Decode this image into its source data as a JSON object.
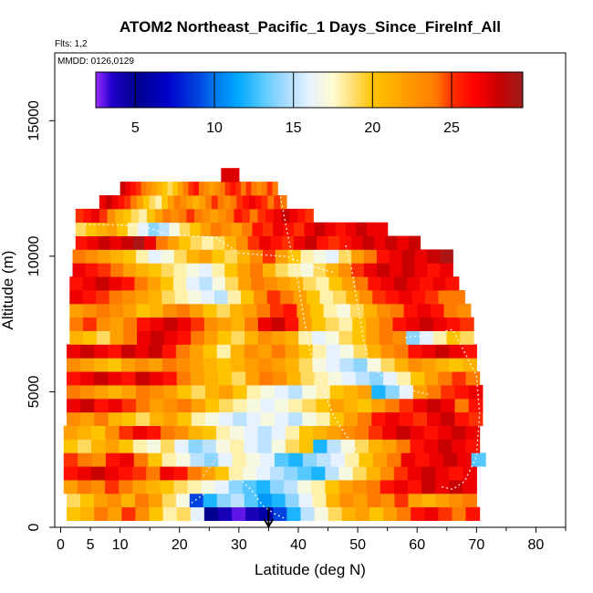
{
  "chart_data": {
    "type": "heatmap",
    "title": "ATOM2 Northeast_Pacific_1 Days_Since_FireInf_All",
    "flights_note": "Flts: 1,2",
    "dates_note": "MMDD: 0126,0129",
    "xlabel": "Latitude (deg N)",
    "ylabel": "Altitude (m)",
    "xlim": [
      -1,
      85
    ],
    "ylim": [
      0,
      17500
    ],
    "x_ticks": [
      0,
      5,
      10,
      20,
      30,
      40,
      50,
      60,
      70,
      80
    ],
    "y_ticks": [
      0,
      5000,
      10000,
      15000
    ],
    "colorbar": {
      "range": [
        2.5,
        29.5
      ],
      "ticks": [
        5,
        10,
        15,
        20,
        25
      ],
      "stops": [
        {
          "v": 2.5,
          "c": "#9a2cff"
        },
        {
          "v": 3.5,
          "c": "#2200cc"
        },
        {
          "v": 5,
          "c": "#00008c"
        },
        {
          "v": 7,
          "c": "#0000c8"
        },
        {
          "v": 9,
          "c": "#0044e0"
        },
        {
          "v": 10,
          "c": "#0077ee"
        },
        {
          "v": 11.5,
          "c": "#00a8ff"
        },
        {
          "v": 13,
          "c": "#55c8ff"
        },
        {
          "v": 14.5,
          "c": "#a6dcff"
        },
        {
          "v": 16,
          "c": "#e6f2ff"
        },
        {
          "v": 17.5,
          "c": "#fffbd0"
        },
        {
          "v": 18.7,
          "c": "#ffe07a"
        },
        {
          "v": 20,
          "c": "#ffc400"
        },
        {
          "v": 22,
          "c": "#ffa000"
        },
        {
          "v": 24,
          "c": "#ff7a00"
        },
        {
          "v": 25,
          "c": "#ff3000"
        },
        {
          "v": 26.5,
          "c": "#ff0000"
        },
        {
          "v": 28,
          "c": "#c80000"
        },
        {
          "v": 29.5,
          "c": "#a01e1e"
        }
      ]
    },
    "arrow_marker_latitude": 35,
    "rows": [
      {
        "alt": 500,
        "lat_min": 1,
        "lat_max": 70.5,
        "seq": [
          20,
          21,
          24,
          22,
          25,
          23,
          20,
          18,
          19,
          16,
          5,
          4,
          3,
          4,
          6,
          9,
          12,
          15,
          17,
          19,
          21,
          22,
          20,
          22,
          24,
          26,
          27,
          25,
          24,
          26
        ]
      },
      {
        "alt": 1000,
        "lat_min": 1,
        "lat_max": 70,
        "seq": [
          19,
          20,
          22,
          23,
          21,
          24,
          22,
          19,
          17,
          9,
          12,
          14,
          15,
          13,
          11,
          12,
          14,
          16,
          18,
          21,
          23,
          22,
          24,
          23,
          25,
          22,
          21,
          22,
          23,
          24
        ]
      },
      {
        "alt": 1500,
        "lat_min": 0.5,
        "lat_max": 70,
        "seq": [
          22,
          24,
          23,
          25,
          24,
          22,
          21,
          20,
          19,
          18,
          17,
          16,
          14,
          13,
          12,
          14,
          15,
          17,
          18,
          20,
          22,
          23,
          24,
          26,
          27,
          26,
          28,
          27,
          28,
          27
        ]
      },
      {
        "alt": 2000,
        "lat_min": 0.5,
        "lat_max": 70,
        "seq": [
          26,
          27,
          28,
          27,
          26,
          25,
          24,
          27,
          26,
          24,
          22,
          20,
          18,
          17,
          16,
          15,
          14,
          13,
          12,
          15,
          17,
          19,
          21,
          23,
          25,
          27,
          28,
          27,
          26,
          27
        ]
      },
      {
        "alt": 2500,
        "lat_min": 0.5,
        "lat_max": 71.5,
        "seq": [
          25,
          24,
          23,
          26,
          27,
          24,
          20,
          18,
          17,
          15,
          14,
          16,
          18,
          17,
          16,
          13,
          12,
          14,
          15,
          16,
          18,
          20,
          22,
          24,
          27,
          26,
          27,
          28,
          27,
          13
        ]
      },
      {
        "alt": 3000,
        "lat_min": 0.5,
        "lat_max": 70.5,
        "seq": [
          20,
          19,
          21,
          22,
          20,
          18,
          17,
          19,
          16,
          14,
          15,
          17,
          18,
          16,
          15,
          17,
          19,
          20,
          12,
          15,
          17,
          19,
          21,
          22,
          24,
          26,
          27,
          28,
          27,
          26
        ]
      },
      {
        "alt": 3500,
        "lat_min": 0.5,
        "lat_max": 70.5,
        "seq": [
          22,
          21,
          20,
          23,
          25,
          27,
          26,
          24,
          23,
          21,
          20,
          18,
          17,
          16,
          15,
          16,
          18,
          20,
          21,
          22,
          23,
          24,
          25,
          27,
          28,
          27,
          26,
          27,
          28,
          27
        ]
      },
      {
        "alt": 4000,
        "lat_min": 1,
        "lat_max": 71,
        "seq": [
          23,
          22,
          24,
          21,
          20,
          19,
          21,
          22,
          20,
          18,
          17,
          16,
          15,
          16,
          17,
          16,
          15,
          17,
          18,
          20,
          22,
          24,
          26,
          27,
          26,
          25,
          27,
          28,
          26,
          25
        ]
      },
      {
        "alt": 4500,
        "lat_min": 1,
        "lat_max": 71,
        "seq": [
          27,
          28,
          26,
          27,
          25,
          24,
          22,
          23,
          24,
          22,
          20,
          19,
          18,
          17,
          16,
          17,
          18,
          19,
          20,
          22,
          21,
          20,
          22,
          24,
          25,
          27,
          28,
          27,
          24,
          26
        ]
      },
      {
        "alt": 5000,
        "lat_min": 1,
        "lat_max": 71,
        "seq": [
          24,
          23,
          22,
          21,
          22,
          24,
          23,
          22,
          20,
          19,
          21,
          22,
          20,
          18,
          17,
          16,
          15,
          17,
          18,
          20,
          21,
          22,
          12,
          14,
          16,
          22,
          24,
          25,
          26,
          27
        ]
      },
      {
        "alt": 5500,
        "lat_min": 1,
        "lat_max": 70.5,
        "seq": [
          26,
          27,
          28,
          27,
          26,
          28,
          27,
          26,
          24,
          22,
          21,
          20,
          19,
          22,
          24,
          23,
          21,
          19,
          18,
          17,
          16,
          15,
          14,
          16,
          18,
          20,
          22,
          24,
          25,
          24
        ]
      },
      {
        "alt": 6000,
        "lat_min": 1,
        "lat_max": 70,
        "seq": [
          23,
          22,
          21,
          20,
          22,
          23,
          22,
          24,
          23,
          22,
          21,
          20,
          21,
          22,
          23,
          22,
          21,
          19,
          17,
          16,
          15,
          14,
          17,
          19,
          21,
          23,
          22,
          21,
          20,
          21
        ]
      },
      {
        "alt": 6500,
        "lat_min": 1,
        "lat_max": 70,
        "seq": [
          27,
          28,
          27,
          26,
          28,
          27,
          28,
          26,
          24,
          22,
          20,
          18,
          21,
          23,
          22,
          24,
          22,
          20,
          18,
          16,
          17,
          19,
          21,
          23,
          24,
          26,
          27,
          28,
          27,
          26
        ]
      },
      {
        "alt": 7000,
        "lat_min": 1.5,
        "lat_max": 69.5,
        "seq": [
          21,
          20,
          19,
          22,
          24,
          27,
          28,
          27,
          26,
          24,
          22,
          20,
          19,
          21,
          23,
          22,
          21,
          18,
          16,
          17,
          19,
          20,
          22,
          24,
          23,
          14,
          16,
          18,
          20,
          19
        ]
      },
      {
        "alt": 7500,
        "lat_min": 1.5,
        "lat_max": 69.5,
        "seq": [
          24,
          25,
          23,
          22,
          24,
          26,
          27,
          28,
          27,
          25,
          23,
          22,
          21,
          24,
          27,
          28,
          26,
          22,
          20,
          19,
          18,
          20,
          22,
          24,
          26,
          27,
          28,
          27,
          26,
          25
        ]
      },
      {
        "alt": 8000,
        "lat_min": 1.5,
        "lat_max": 69,
        "seq": [
          22,
          23,
          24,
          23,
          22,
          20,
          21,
          23,
          24,
          22,
          20,
          19,
          21,
          22,
          24,
          25,
          26,
          22,
          20,
          18,
          17,
          19,
          21,
          23,
          24,
          26,
          27,
          26,
          24,
          23
        ]
      },
      {
        "alt": 8500,
        "lat_min": 1.5,
        "lat_max": 68,
        "seq": [
          27,
          26,
          25,
          24,
          23,
          22,
          21,
          19,
          18,
          17,
          16,
          15,
          18,
          20,
          23,
          25,
          24,
          22,
          20,
          18,
          19,
          21,
          23,
          25,
          26,
          27,
          26,
          25,
          24,
          24
        ]
      },
      {
        "alt": 9000,
        "lat_min": 1.5,
        "lat_max": 67,
        "seq": [
          26,
          27,
          28,
          27,
          26,
          24,
          22,
          20,
          18,
          16,
          15,
          17,
          19,
          22,
          24,
          23,
          22,
          21,
          19,
          18,
          20,
          22,
          24,
          26,
          27,
          28,
          27,
          26,
          27,
          26
        ]
      },
      {
        "alt": 9500,
        "lat_min": 2,
        "lat_max": 66,
        "seq": [
          27,
          26,
          25,
          24,
          22,
          21,
          20,
          19,
          18,
          17,
          16,
          18,
          20,
          22,
          24,
          21,
          19,
          18,
          17,
          19,
          21,
          23,
          25,
          27,
          28,
          27,
          28,
          27,
          26,
          27
        ]
      },
      {
        "alt": 10000,
        "lat_min": 2,
        "lat_max": 66,
        "seq": [
          24,
          23,
          22,
          21,
          20,
          18,
          16,
          17,
          19,
          21,
          22,
          20,
          19,
          21,
          23,
          25,
          22,
          20,
          18,
          17,
          16,
          19,
          22,
          24,
          26,
          27,
          28,
          27,
          28,
          29
        ]
      },
      {
        "alt": 10500,
        "lat_min": 2.5,
        "lat_max": 60.5,
        "seq": [
          26,
          27,
          28,
          27,
          28,
          29,
          27,
          24,
          22,
          20,
          19,
          18,
          19,
          21,
          23,
          25,
          27,
          26,
          25,
          27,
          28,
          26,
          25,
          26,
          27,
          28,
          27,
          28,
          27,
          28
        ]
      },
      {
        "alt": 11000,
        "lat_min": 2.5,
        "lat_max": 55,
        "seq": [
          19,
          20,
          21,
          22,
          20,
          18,
          16,
          14,
          15,
          17,
          19,
          20,
          22,
          24,
          23,
          22,
          24,
          26,
          25,
          27,
          26,
          25,
          27,
          28,
          27,
          26,
          27,
          28,
          27,
          27
        ]
      },
      {
        "alt": 11500,
        "lat_min": 2.5,
        "lat_max": 42.5,
        "seq": [
          25,
          26,
          27,
          25,
          23,
          21,
          20,
          19,
          18,
          20,
          22,
          24,
          23,
          24,
          25,
          24,
          23,
          22,
          23,
          24,
          26,
          25,
          24,
          25,
          26,
          27,
          28,
          27,
          26,
          25
        ]
      },
      {
        "alt": 12000,
        "lat_min": 6.5,
        "lat_max": 38,
        "seq": [
          27,
          28,
          27,
          26,
          25,
          24,
          22,
          20,
          19,
          18,
          20,
          22,
          24,
          23,
          22,
          21,
          22,
          24,
          25,
          24,
          23,
          24,
          25,
          26,
          27,
          26,
          25,
          24,
          25,
          24
        ]
      },
      {
        "alt": 12500,
        "lat_min": 10,
        "lat_max": 36.5,
        "seq": [
          28,
          27,
          26,
          25,
          24,
          23,
          22,
          21,
          20,
          19,
          20,
          22,
          24,
          25,
          26,
          24,
          23,
          22,
          23,
          24,
          25,
          26,
          25,
          24,
          25,
          24,
          23,
          24,
          25,
          24
        ]
      },
      {
        "alt": 13000,
        "lat_min": 27,
        "lat_max": 30,
        "seq": [
          28,
          27,
          28,
          27,
          28,
          27,
          28,
          27,
          28,
          27,
          28,
          27,
          28,
          27,
          28,
          27,
          28,
          27,
          28,
          27,
          28,
          27,
          28,
          27,
          28,
          27,
          28,
          27,
          28,
          27
        ]
      }
    ],
    "flight_tracks": [
      {
        "color": "#ffffff",
        "points": [
          [
            4,
            11180
          ],
          [
            10,
            11150
          ],
          [
            14,
            11100
          ],
          [
            18,
            10820
          ],
          [
            22,
            10750
          ],
          [
            26,
            10700
          ],
          [
            30,
            10120
          ],
          [
            34,
            10050
          ],
          [
            38,
            10000
          ],
          [
            42,
            9650
          ],
          [
            46,
            9400
          ]
        ]
      },
      {
        "color": "#ffffff",
        "points": [
          [
            37,
            12200
          ],
          [
            38.5,
            10500
          ],
          [
            40,
            9000
          ],
          [
            41,
            7600
          ],
          [
            42,
            6500
          ],
          [
            44,
            5200
          ],
          [
            46,
            4100
          ],
          [
            48,
            3400
          ],
          [
            50,
            2800
          ]
        ]
      },
      {
        "color": "#ffffff",
        "points": [
          [
            48,
            10400
          ],
          [
            49,
            9500
          ],
          [
            50,
            8200
          ],
          [
            51,
            6900
          ],
          [
            52,
            6000
          ],
          [
            55,
            5400
          ],
          [
            58,
            5100
          ],
          [
            62,
            4900
          ]
        ]
      },
      {
        "color": "#ffffff",
        "points": [
          [
            58,
            7000
          ],
          [
            62,
            7100
          ],
          [
            66,
            7300
          ],
          [
            70,
            5600
          ],
          [
            70.5,
            4200
          ],
          [
            70,
            2600
          ],
          [
            68,
            1700
          ],
          [
            66,
            1400
          ],
          [
            64,
            1500
          ]
        ]
      },
      {
        "color": "#ffdddd",
        "points": [
          [
            24,
            1900
          ],
          [
            26,
            2500
          ],
          [
            28,
            3000
          ],
          [
            30,
            3500
          ],
          [
            32,
            3700
          ],
          [
            34,
            3900
          ],
          [
            36,
            4200
          ]
        ]
      },
      {
        "color": "#ffffff",
        "points": [
          [
            22,
            900
          ],
          [
            24,
            1200
          ],
          [
            26,
            1600
          ],
          [
            28,
            1700
          ],
          [
            30,
            1800
          ],
          [
            32,
            1400
          ],
          [
            34,
            800
          ],
          [
            36,
            500
          ],
          [
            38,
            300
          ]
        ]
      }
    ]
  }
}
